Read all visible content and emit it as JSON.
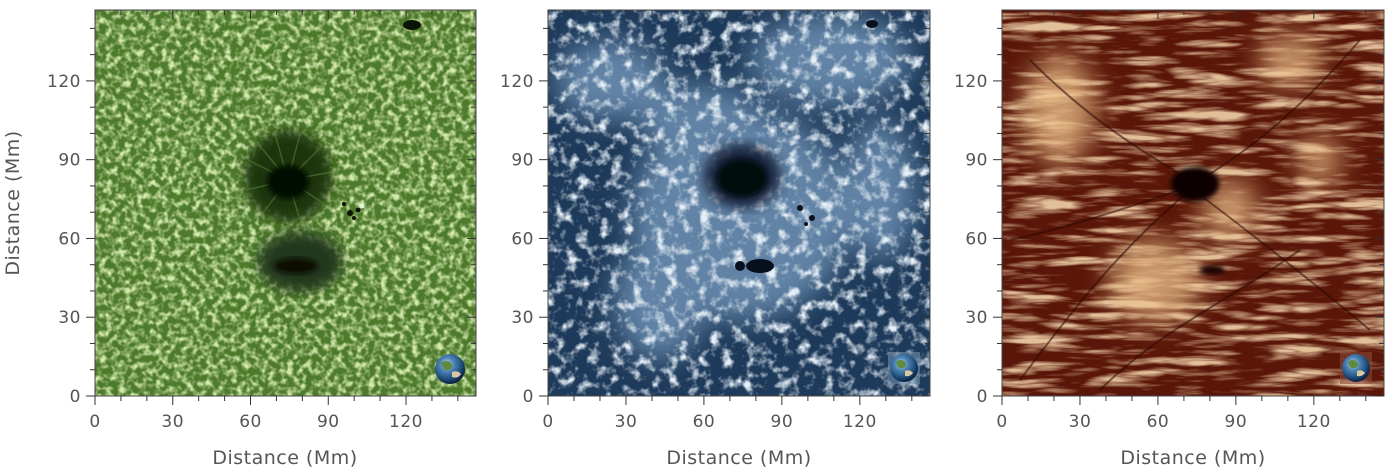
{
  "figure": {
    "panels": [
      {
        "id": "green",
        "xlabel": "Distance (Mm)",
        "ylabel": "Distance (Mm)",
        "x_ticks": [
          "0",
          "30",
          "60",
          "90",
          "120"
        ],
        "y_ticks": [
          "0",
          "30",
          "60",
          "90",
          "120"
        ],
        "palette": {
          "bright": "#a9cf6b",
          "mid": "#5e8c35",
          "dark": "#1d3310",
          "umbra": "#050802"
        },
        "icon": "earth-scale-icon"
      },
      {
        "id": "blue",
        "xlabel": "Distance (Mm)",
        "ylabel": "",
        "x_ticks": [
          "0",
          "30",
          "60",
          "90",
          "120"
        ],
        "y_ticks": [
          "0",
          "30",
          "60",
          "90",
          "120"
        ],
        "palette": {
          "bright": "#c9dcec",
          "mid": "#4f7ba3",
          "dark": "#15283f",
          "umbra": "#03070c"
        },
        "icon": "earth-scale-icon"
      },
      {
        "id": "red",
        "xlabel": "Distance (Mm)",
        "ylabel": "",
        "x_ticks": [
          "0",
          "30",
          "60",
          "90",
          "120"
        ],
        "y_ticks": [
          "0",
          "30",
          "60",
          "90",
          "120"
        ],
        "palette": {
          "bright": "#f4d3a3",
          "mid": "#a84318",
          "dark": "#4a0f05",
          "umbra": "#0a0200"
        },
        "icon": "earth-scale-icon"
      }
    ]
  }
}
